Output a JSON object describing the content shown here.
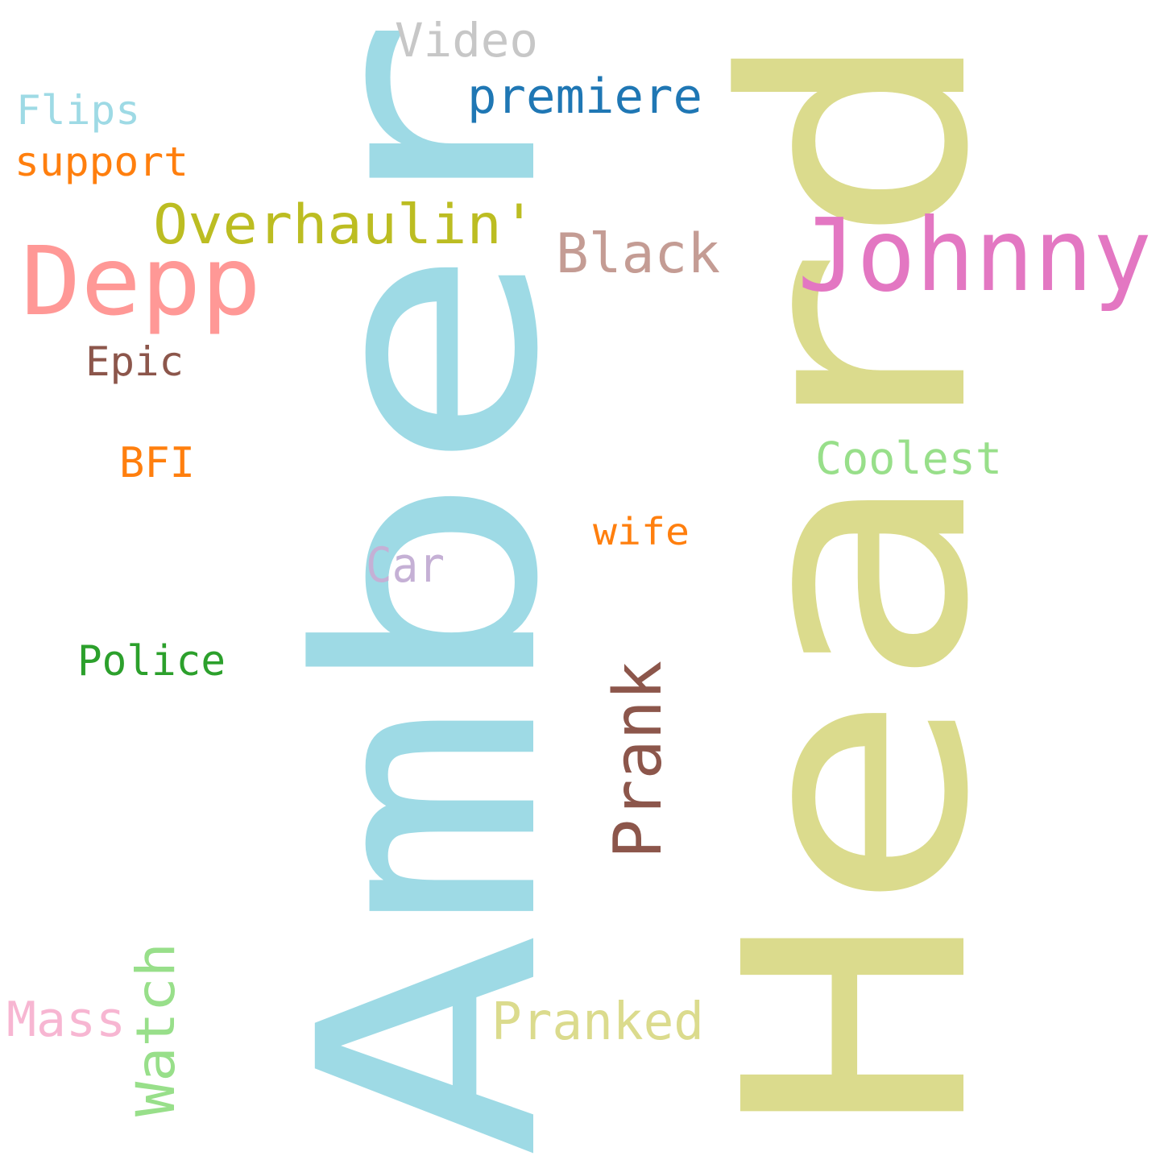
{
  "words": [
    {
      "id": "amber",
      "text": "Amber",
      "color": "#9edae5",
      "orientation": "vertical"
    },
    {
      "id": "heard",
      "text": "Heard",
      "color": "#dbdb8d",
      "orientation": "vertical"
    },
    {
      "id": "johnny",
      "text": "Johnny",
      "color": "#e377c2",
      "orientation": "horizontal"
    },
    {
      "id": "depp",
      "text": "Depp",
      "color": "#ff9896",
      "orientation": "horizontal"
    },
    {
      "id": "overhaulin",
      "text": "Overhaulin'",
      "color": "#bcbd22",
      "orientation": "horizontal"
    },
    {
      "id": "black",
      "text": "Black",
      "color": "#c49c94",
      "orientation": "horizontal"
    },
    {
      "id": "premiere",
      "text": "premiere",
      "color": "#1f77b4",
      "orientation": "horizontal"
    },
    {
      "id": "video",
      "text": "Video",
      "color": "#c7c7c7",
      "orientation": "horizontal"
    },
    {
      "id": "flips",
      "text": "Flips",
      "color": "#9edae5",
      "orientation": "horizontal"
    },
    {
      "id": "support",
      "text": "support",
      "color": "#ff7f0e",
      "orientation": "horizontal"
    },
    {
      "id": "epic",
      "text": "Epic",
      "color": "#8c564b",
      "orientation": "horizontal"
    },
    {
      "id": "bfi",
      "text": "BFI",
      "color": "#ff7f0e",
      "orientation": "horizontal"
    },
    {
      "id": "coolest",
      "text": "Coolest",
      "color": "#98df8a",
      "orientation": "horizontal"
    },
    {
      "id": "wife",
      "text": "wife",
      "color": "#ff7f0e",
      "orientation": "horizontal"
    },
    {
      "id": "car",
      "text": "Car",
      "color": "#c5b0d5",
      "orientation": "horizontal"
    },
    {
      "id": "police",
      "text": "Police",
      "color": "#2ca02c",
      "orientation": "horizontal"
    },
    {
      "id": "prank",
      "text": "Prank",
      "color": "#8c564b",
      "orientation": "vertical"
    },
    {
      "id": "watch",
      "text": "Watch",
      "color": "#98df8a",
      "orientation": "vertical"
    },
    {
      "id": "mass",
      "text": "Mass",
      "color": "#f7b6d2",
      "orientation": "horizontal"
    },
    {
      "id": "pranked",
      "text": "Pranked",
      "color": "#dbdb8d",
      "orientation": "horizontal"
    }
  ]
}
